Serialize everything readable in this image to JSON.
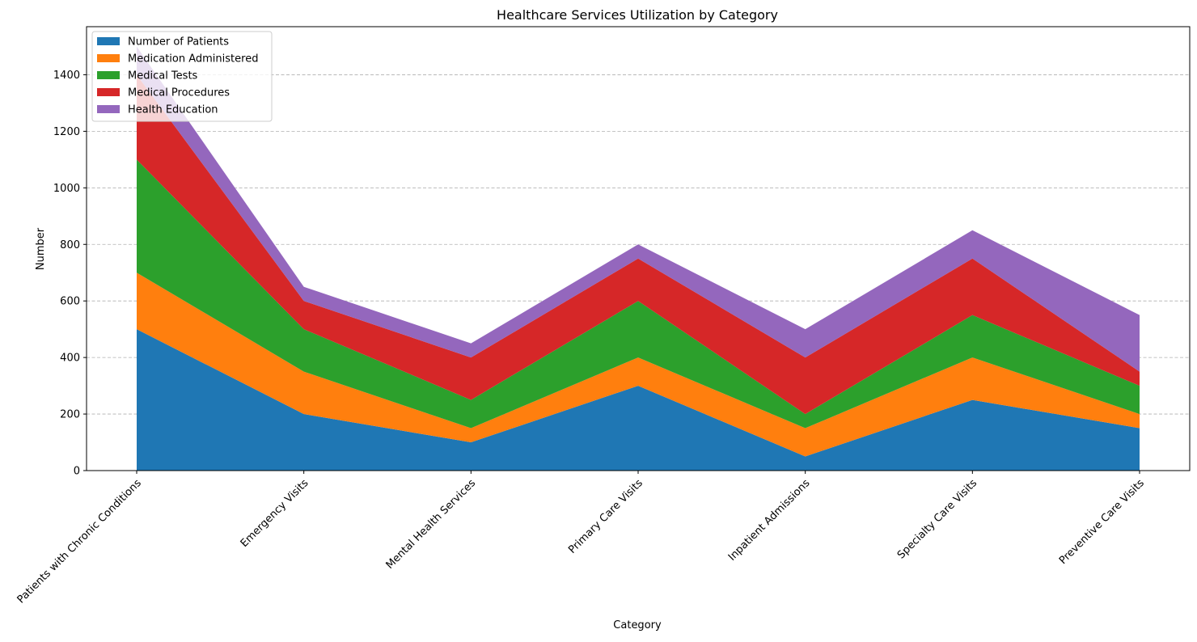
{
  "chart_data": {
    "type": "area",
    "stacked": true,
    "title": "Healthcare Services Utilization by Category",
    "xlabel": "Category",
    "ylabel": "Number",
    "ylim": [
      0,
      1570
    ],
    "yticks": [
      0,
      200,
      400,
      600,
      800,
      1000,
      1200,
      1400
    ],
    "grid": {
      "y": true,
      "x": false,
      "style": "dashed"
    },
    "legend_position": "top-left",
    "categories": [
      "Patients with Chronic Conditions",
      "Emergency Visits",
      "Mental Health Services",
      "Primary Care Visits",
      "Inpatient Admissions",
      "Specialty Care Visits",
      "Preventive Care Visits"
    ],
    "series": [
      {
        "name": "Number of Patients",
        "color": "#1f77b4",
        "values": [
          500,
          200,
          100,
          300,
          50,
          250,
          150
        ]
      },
      {
        "name": "Medication Administered",
        "color": "#ff7f0e",
        "values": [
          200,
          150,
          50,
          100,
          100,
          150,
          50
        ]
      },
      {
        "name": "Medical Tests",
        "color": "#2ca02c",
        "values": [
          400,
          150,
          100,
          200,
          50,
          150,
          100
        ]
      },
      {
        "name": "Medical Procedures",
        "color": "#d62728",
        "values": [
          300,
          100,
          150,
          150,
          200,
          200,
          50
        ]
      },
      {
        "name": "Health Education",
        "color": "#9467bd",
        "values": [
          100,
          50,
          50,
          50,
          100,
          100,
          200
        ]
      }
    ]
  }
}
